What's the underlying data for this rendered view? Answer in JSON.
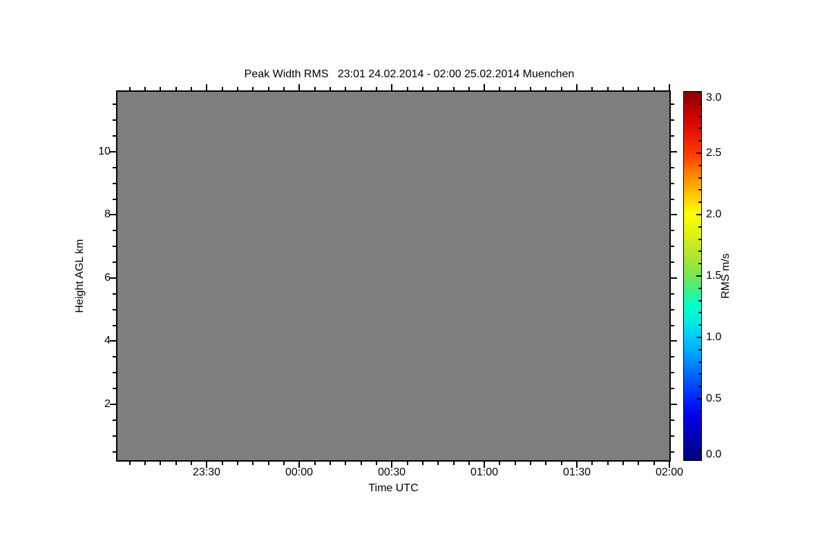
{
  "figure": {
    "background": "#FFFFFF",
    "frame_color": "#000000",
    "plot_fill": "#7E7E7E"
  },
  "chart_data": {
    "type": "heatmap",
    "title": "Peak Width RMS   23:01 24.02.2014 - 02:00 25.02.2014 Muenchen",
    "xlabel": "Time UTC",
    "ylabel": "Height AGL km",
    "x_axis": {
      "range_labels": [
        "23:01",
        "02:00"
      ],
      "range_minutes_after_2300": [
        1,
        180
      ],
      "major_ticks": [
        {
          "label": "23:30",
          "minute": 30
        },
        {
          "label": "00:00",
          "minute": 60
        },
        {
          "label": "00:30",
          "minute": 90
        },
        {
          "label": "01:00",
          "minute": 120
        },
        {
          "label": "01:30",
          "minute": 150
        },
        {
          "label": "02:00",
          "minute": 180
        }
      ],
      "minor_tick_interval_minutes": 5
    },
    "y_axis": {
      "range_km": [
        0.23,
        11.9
      ],
      "major_ticks": [
        {
          "label": "2",
          "km": 2
        },
        {
          "label": "4",
          "km": 4
        },
        {
          "label": "6",
          "km": 6
        },
        {
          "label": "8",
          "km": 8
        },
        {
          "label": "10",
          "km": 10
        }
      ],
      "minor_tick_interval_km": 0.5
    },
    "field": {
      "uniform": true,
      "color": "#7E7E7E",
      "meaning": "entire time-height field rendered as uniform gray (no RMS values displayed)"
    },
    "colorbar": {
      "label": "RMS m/s",
      "range": [
        0.0,
        3.0
      ],
      "major_ticks": [
        "0.0",
        "0.5",
        "1.0",
        "1.5",
        "2.0",
        "2.5",
        "3.0"
      ],
      "minor_tick_interval": 0.1,
      "colormap": "rainbow",
      "colormap_stops": [
        {
          "pos": 0,
          "color": "#000080"
        },
        {
          "pos": 6,
          "color": "#0000B4"
        },
        {
          "pos": 12,
          "color": "#0000E6"
        },
        {
          "pos": 17,
          "color": "#0028FF"
        },
        {
          "pos": 23,
          "color": "#0064FF"
        },
        {
          "pos": 29,
          "color": "#00A4FF"
        },
        {
          "pos": 33,
          "color": "#00C8FF"
        },
        {
          "pos": 38,
          "color": "#00F0E0"
        },
        {
          "pos": 42,
          "color": "#00FFC8"
        },
        {
          "pos": 46,
          "color": "#3CF08C"
        },
        {
          "pos": 50,
          "color": "#78E650"
        },
        {
          "pos": 55,
          "color": "#AAE632"
        },
        {
          "pos": 60,
          "color": "#D2F019"
        },
        {
          "pos": 67,
          "color": "#FFFF00"
        },
        {
          "pos": 72,
          "color": "#FFC800"
        },
        {
          "pos": 77,
          "color": "#FF8C00"
        },
        {
          "pos": 83,
          "color": "#FF3C00"
        },
        {
          "pos": 89,
          "color": "#E61400"
        },
        {
          "pos": 94,
          "color": "#C80000"
        },
        {
          "pos": 100,
          "color": "#8B0000"
        }
      ]
    }
  }
}
